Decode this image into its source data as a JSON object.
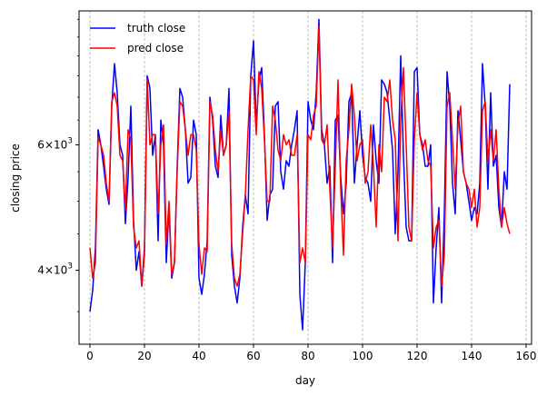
{
  "chart_data": {
    "type": "line",
    "xlabel": "day",
    "ylabel": "closing price",
    "xlim": [
      -4,
      162
    ],
    "ylim": [
      3150,
      9250
    ],
    "y_scale": "log",
    "grid": "vertical dashed at x ticks",
    "legend_position": "top-left",
    "x_ticks": [
      0,
      20,
      40,
      60,
      80,
      100,
      120,
      140,
      160
    ],
    "x_tick_labels": [
      "0",
      "20",
      "40",
      "60",
      "80",
      "100",
      "120",
      "140",
      "160"
    ],
    "y_ticks": [
      4000,
      6000
    ],
    "y_tick_labels": [
      {
        "base": "4",
        "exp": "3"
      },
      {
        "base": "6",
        "exp": "3"
      }
    ],
    "y_tick_prefix": "×10",
    "series": [
      {
        "name": "truth close",
        "color": "#0000ff",
        "values": [
          3500,
          3750,
          4300,
          6300,
          6000,
          5600,
          5200,
          4950,
          6800,
          7800,
          7100,
          6000,
          5800,
          4650,
          5400,
          6800,
          4700,
          4000,
          4250,
          3800,
          4300,
          7500,
          7200,
          5800,
          6200,
          4400,
          6500,
          6000,
          4100,
          4900,
          3900,
          4100,
          5600,
          7200,
          7000,
          6300,
          5300,
          5400,
          6500,
          6200,
          3900,
          3700,
          3950,
          4400,
          7000,
          6500,
          5600,
          5400,
          6600,
          5800,
          6000,
          7200,
          4200,
          3800,
          3600,
          3900,
          4600,
          5100,
          4800,
          7500,
          8400,
          6400,
          7400,
          7700,
          6200,
          4700,
          5100,
          5200,
          6800,
          6900,
          5500,
          5200,
          5700,
          5600,
          6000,
          6300,
          6700,
          3700,
          3300,
          4100,
          6900,
          6500,
          6300,
          7100,
          9000,
          6300,
          6000,
          5300,
          5600,
          4100,
          6500,
          6600,
          5400,
          4800,
          5300,
          6900,
          7100,
          5300,
          6000,
          6700,
          5800,
          5400,
          5300,
          5000,
          6400,
          5700,
          5300,
          7400,
          7300,
          7100,
          6500,
          5900,
          4500,
          5500,
          8000,
          5800,
          4600,
          4400,
          4400,
          7600,
          7700,
          6200,
          6000,
          5600,
          5600,
          6000,
          3600,
          4300,
          4900,
          3600,
          4800,
          7600,
          6800,
          5300,
          4800,
          6700,
          6100,
          5500,
          5300,
          5000,
          4700,
          4900,
          4800,
          5300,
          7800,
          6800,
          5200,
          7100,
          5600,
          5800,
          4900,
          4600,
          5500,
          5200,
          7300
        ]
      },
      {
        "name": "pred close",
        "color": "#ff0000",
        "values": [
          4300,
          3900,
          4100,
          6150,
          6000,
          5800,
          5300,
          5000,
          6900,
          7100,
          6800,
          5800,
          5700,
          4850,
          6300,
          6100,
          4600,
          4300,
          4400,
          3800,
          4200,
          7400,
          6000,
          6200,
          6200,
          4800,
          6000,
          6400,
          4350,
          5000,
          3950,
          4100,
          5500,
          6900,
          6800,
          6300,
          5800,
          6200,
          6200,
          5900,
          4350,
          3950,
          4300,
          4250,
          6900,
          6600,
          5900,
          5500,
          6300,
          5800,
          6000,
          6700,
          4350,
          3900,
          3800,
          3950,
          4500,
          5100,
          6300,
          7500,
          7400,
          6200,
          7600,
          7200,
          6100,
          5000,
          5000,
          6800,
          6500,
          5900,
          5700,
          6200,
          6000,
          6100,
          5800,
          5800,
          6200,
          4100,
          4300,
          4100,
          6200,
          6100,
          6600,
          6800,
          8800,
          6100,
          6000,
          6400,
          5200,
          4300,
          5600,
          7400,
          5200,
          4200,
          5700,
          6300,
          7300,
          6600,
          5700,
          6000,
          6100,
          5300,
          5500,
          6400,
          5600,
          4600,
          6000,
          5500,
          7000,
          6900,
          7400,
          6500,
          6100,
          4400,
          6500,
          7700,
          6000,
          4600,
          4400,
          6100,
          7100,
          6200,
          5900,
          6100,
          5700,
          5600,
          4300,
          4600,
          4700,
          3800,
          4200,
          6800,
          7100,
          6100,
          5200,
          6400,
          6800,
          5500,
          5300,
          5200,
          4900,
          5200,
          4600,
          4900,
          6700,
          6900,
          5700,
          6300,
          5700,
          6300,
          5200,
          4600,
          4900,
          4650,
          4500
        ]
      }
    ]
  }
}
